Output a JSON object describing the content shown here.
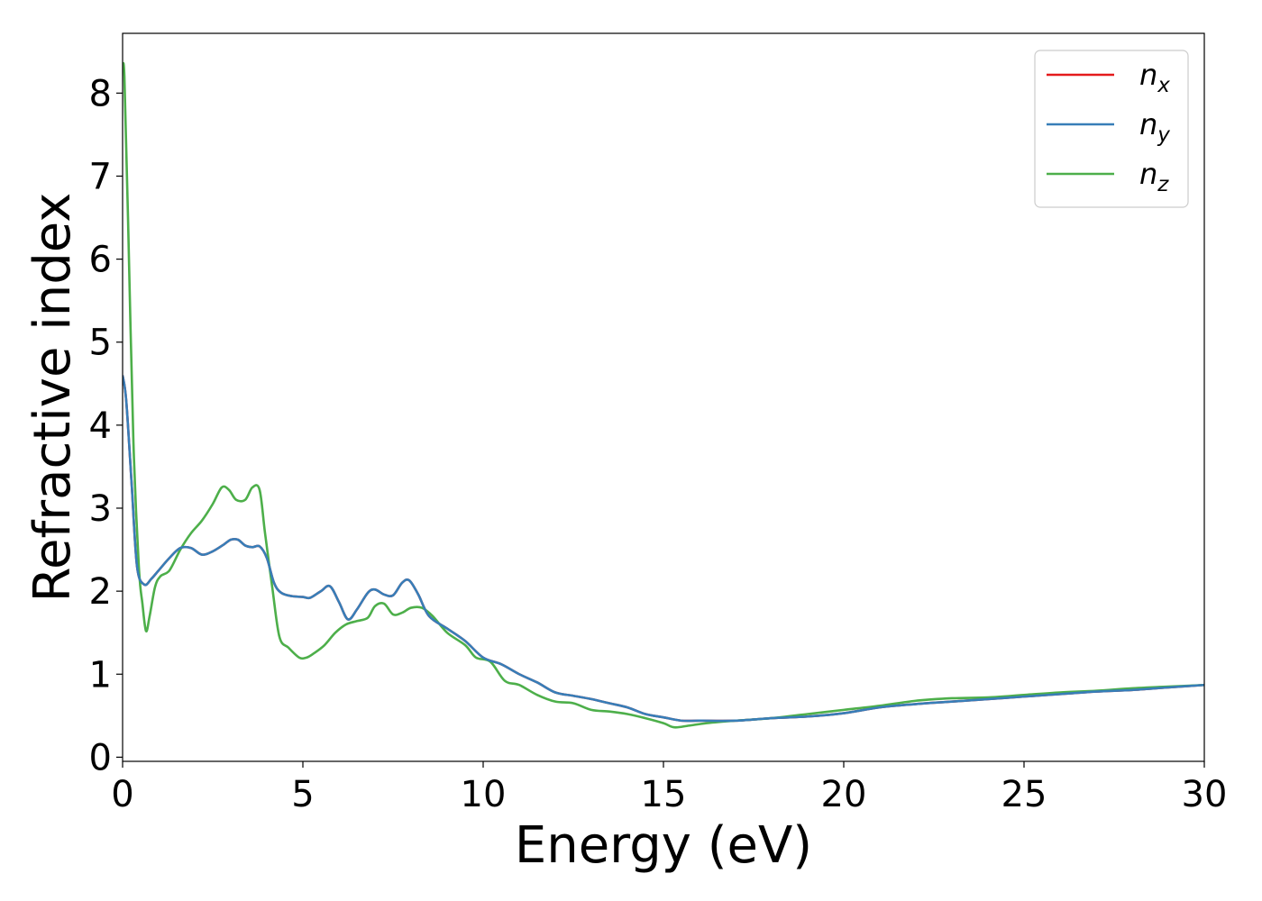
{
  "chart_data": {
    "type": "line",
    "xlabel": "Energy (eV)",
    "ylabel": "Refractive index",
    "xlim": [
      0,
      30
    ],
    "ylim": [
      -0.05,
      8.72
    ],
    "xticks": [
      "0",
      "5",
      "10",
      "15",
      "20",
      "25",
      "30"
    ],
    "yticks": [
      "0",
      "1",
      "2",
      "3",
      "4",
      "5",
      "6",
      "7",
      "8"
    ],
    "grid": false,
    "legend_position": "top-right",
    "series": [
      {
        "name": "n",
        "subscript": "x",
        "color": "#e41a1c",
        "x": [
          0,
          0.1,
          0.25,
          0.4,
          0.6,
          0.8,
          1.0,
          1.3,
          1.6,
          1.9,
          2.2,
          2.5,
          2.8,
          3.0,
          3.2,
          3.4,
          3.6,
          3.8,
          4.0,
          4.2,
          4.4,
          4.7,
          5.0,
          5.2,
          5.5,
          5.75,
          6.0,
          6.25,
          6.5,
          6.8,
          7.0,
          7.25,
          7.5,
          7.75,
          7.95,
          8.2,
          8.5,
          9.0,
          9.5,
          10.0,
          10.5,
          11.0,
          11.5,
          12.0,
          12.5,
          13.0,
          13.5,
          14.0,
          14.5,
          15.0,
          15.5,
          16.0,
          17.0,
          18.0,
          19.0,
          20.0,
          21.0,
          22.0,
          23.0,
          24.0,
          25.0,
          26.0,
          27.0,
          28.0,
          29.0,
          30.0
        ],
        "y": [
          4.6,
          4.3,
          3.3,
          2.3,
          2.08,
          2.15,
          2.25,
          2.4,
          2.52,
          2.52,
          2.44,
          2.48,
          2.56,
          2.62,
          2.62,
          2.55,
          2.53,
          2.54,
          2.4,
          2.1,
          1.98,
          1.94,
          1.93,
          1.92,
          2.0,
          2.06,
          1.87,
          1.66,
          1.78,
          1.98,
          2.02,
          1.96,
          1.95,
          2.1,
          2.13,
          1.96,
          1.7,
          1.55,
          1.4,
          1.2,
          1.12,
          1.0,
          0.9,
          0.78,
          0.74,
          0.7,
          0.65,
          0.6,
          0.52,
          0.48,
          0.44,
          0.44,
          0.44,
          0.47,
          0.49,
          0.53,
          0.6,
          0.64,
          0.67,
          0.7,
          0.73,
          0.76,
          0.79,
          0.81,
          0.84,
          0.87
        ]
      },
      {
        "name": "n",
        "subscript": "y",
        "color": "#377eb8",
        "x": [
          0,
          0.1,
          0.25,
          0.4,
          0.6,
          0.8,
          1.0,
          1.3,
          1.6,
          1.9,
          2.2,
          2.5,
          2.8,
          3.0,
          3.2,
          3.4,
          3.6,
          3.8,
          4.0,
          4.2,
          4.4,
          4.7,
          5.0,
          5.2,
          5.5,
          5.75,
          6.0,
          6.25,
          6.5,
          6.8,
          7.0,
          7.25,
          7.5,
          7.75,
          7.95,
          8.2,
          8.5,
          9.0,
          9.5,
          10.0,
          10.5,
          11.0,
          11.5,
          12.0,
          12.5,
          13.0,
          13.5,
          14.0,
          14.5,
          15.0,
          15.5,
          16.0,
          17.0,
          18.0,
          19.0,
          20.0,
          21.0,
          22.0,
          23.0,
          24.0,
          25.0,
          26.0,
          27.0,
          28.0,
          29.0,
          30.0
        ],
        "y": [
          4.6,
          4.3,
          3.3,
          2.3,
          2.08,
          2.15,
          2.25,
          2.4,
          2.52,
          2.52,
          2.44,
          2.48,
          2.56,
          2.62,
          2.62,
          2.55,
          2.53,
          2.54,
          2.4,
          2.1,
          1.98,
          1.94,
          1.93,
          1.92,
          2.0,
          2.06,
          1.87,
          1.66,
          1.78,
          1.98,
          2.02,
          1.96,
          1.95,
          2.1,
          2.13,
          1.96,
          1.7,
          1.55,
          1.4,
          1.2,
          1.12,
          1.0,
          0.9,
          0.78,
          0.74,
          0.7,
          0.65,
          0.6,
          0.52,
          0.48,
          0.44,
          0.44,
          0.44,
          0.47,
          0.49,
          0.53,
          0.6,
          0.64,
          0.67,
          0.7,
          0.73,
          0.76,
          0.79,
          0.81,
          0.84,
          0.87
        ]
      },
      {
        "name": "n",
        "subscript": "z",
        "color": "#4daf4a",
        "x": [
          0,
          0.05,
          0.15,
          0.3,
          0.45,
          0.55,
          0.65,
          0.75,
          0.9,
          1.05,
          1.3,
          1.6,
          1.9,
          2.2,
          2.5,
          2.75,
          2.95,
          3.15,
          3.4,
          3.6,
          3.8,
          3.95,
          4.15,
          4.35,
          4.6,
          4.9,
          5.1,
          5.3,
          5.6,
          5.9,
          6.2,
          6.5,
          6.8,
          7.0,
          7.25,
          7.5,
          7.75,
          8.0,
          8.3,
          8.6,
          9.0,
          9.5,
          9.8,
          10.2,
          10.6,
          11.0,
          11.5,
          12.0,
          12.5,
          13.0,
          13.5,
          14.0,
          14.5,
          15.0,
          15.3,
          15.7,
          16.2,
          17.0,
          18.0,
          19.0,
          20.0,
          21.0,
          22.0,
          23.0,
          24.0,
          25.0,
          26.0,
          27.0,
          28.0,
          29.0,
          30.0
        ],
        "y": [
          8.3,
          8.2,
          6.5,
          3.8,
          2.3,
          1.85,
          1.52,
          1.7,
          2.05,
          2.18,
          2.25,
          2.5,
          2.7,
          2.85,
          3.05,
          3.25,
          3.22,
          3.1,
          3.1,
          3.25,
          3.22,
          2.7,
          2.05,
          1.45,
          1.32,
          1.2,
          1.2,
          1.25,
          1.35,
          1.5,
          1.6,
          1.64,
          1.68,
          1.82,
          1.85,
          1.72,
          1.74,
          1.8,
          1.8,
          1.7,
          1.5,
          1.35,
          1.2,
          1.15,
          0.92,
          0.87,
          0.75,
          0.67,
          0.65,
          0.57,
          0.55,
          0.52,
          0.47,
          0.41,
          0.36,
          0.38,
          0.41,
          0.44,
          0.47,
          0.52,
          0.57,
          0.62,
          0.68,
          0.71,
          0.72,
          0.75,
          0.78,
          0.8,
          0.83,
          0.85,
          0.87
        ]
      }
    ]
  }
}
